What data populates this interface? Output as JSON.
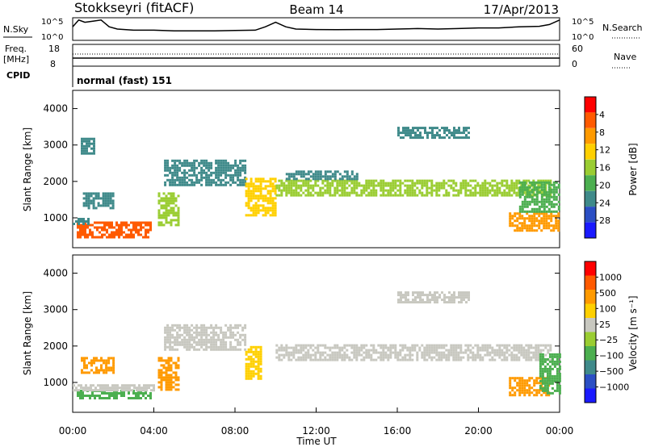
{
  "header": {
    "station": "Stokkseyri (fitACF)",
    "beam": "Beam 14",
    "date": "17/Apr/2013"
  },
  "labels": {
    "nsky": "N.Sky",
    "nsearch": "N.Search",
    "freq": "Freq.",
    "freq_unit": "[MHz]",
    "cpid": "CPID",
    "nave": "Nave",
    "mode": "normal (fast) 151"
  },
  "chart_data": [
    {
      "type": "line",
      "name": "noise-panel",
      "left_ticks": [
        "10^5",
        "10^0"
      ],
      "right_ticks": [
        "10^5",
        "10^0"
      ],
      "x_hours": [
        0,
        0.3,
        0.6,
        1.0,
        1.4,
        1.8,
        2.2,
        3,
        4,
        5,
        6,
        7,
        8,
        9,
        9.5,
        10,
        10.5,
        11,
        12,
        13,
        14,
        15,
        16,
        17,
        18,
        19,
        20,
        21,
        22,
        23,
        23.5,
        24
      ],
      "y": [
        0.6,
        0.9,
        0.8,
        0.85,
        0.9,
        0.6,
        0.5,
        0.45,
        0.45,
        0.42,
        0.42,
        0.42,
        0.44,
        0.45,
        0.6,
        0.8,
        0.6,
        0.5,
        0.48,
        0.47,
        0.48,
        0.48,
        0.5,
        0.52,
        0.5,
        0.52,
        0.55,
        0.55,
        0.6,
        0.62,
        0.7,
        0.9
      ]
    },
    {
      "type": "line",
      "name": "frequency-panel",
      "left_ticks": [
        "18",
        "8"
      ],
      "right_ticks": [
        "60",
        "0"
      ]
    },
    {
      "type": "heatmap",
      "name": "power-panel",
      "xlabel": "",
      "ylabel": "Slant Range [km]",
      "xlim": [
        0,
        24
      ],
      "ylim": [
        180,
        4500
      ],
      "y_ticks": [
        1000,
        2000,
        3000,
        4000
      ],
      "colorbar_label": "Power [dB]",
      "colorbar_ticks": [
        "4",
        "8",
        "12",
        "16",
        "20",
        "24",
        "28"
      ],
      "colorbar_colors": [
        "#1a1aff",
        "#2b4fc4",
        "#3f8a8a",
        "#4caf50",
        "#9acd32",
        "#ffd000",
        "#ff9a00",
        "#ff5a00",
        "#ff0000"
      ],
      "bands": [
        {
          "x": [
            0.2,
            3.8
          ],
          "y": [
            500,
            900
          ],
          "level": 0.85
        },
        {
          "x": [
            0.0,
            0.8
          ],
          "y": [
            850,
            1000
          ],
          "level": 0.3
        },
        {
          "x": [
            0.5,
            2.0
          ],
          "y": [
            1300,
            1700
          ],
          "level": 0.3
        },
        {
          "x": [
            4.2,
            5.2
          ],
          "y": [
            800,
            1700
          ],
          "level": 0.45
        },
        {
          "x": [
            0.4,
            1.0
          ],
          "y": [
            2800,
            3200
          ],
          "level": 0.2
        },
        {
          "x": [
            4.5,
            8.5
          ],
          "y": [
            1900,
            2600
          ],
          "level": 0.3
        },
        {
          "x": [
            8.5,
            10.0
          ],
          "y": [
            1100,
            2100
          ],
          "level": 0.6
        },
        {
          "x": [
            10.0,
            23.5
          ],
          "y": [
            1600,
            2050
          ],
          "level": 0.55
        },
        {
          "x": [
            10.5,
            14.0
          ],
          "y": [
            2050,
            2300
          ],
          "level": 0.3
        },
        {
          "x": [
            16.0,
            19.5
          ],
          "y": [
            3200,
            3500
          ],
          "level": 0.2
        },
        {
          "x": [
            21.5,
            24.0
          ],
          "y": [
            650,
            1150
          ],
          "level": 0.8
        },
        {
          "x": [
            22.0,
            24.0
          ],
          "y": [
            1200,
            2000
          ],
          "level": 0.35
        }
      ]
    },
    {
      "type": "heatmap",
      "name": "velocity-panel",
      "xlabel": "Time UT",
      "ylabel": "Slant Range [km]",
      "xlim": [
        0,
        24
      ],
      "ylim": [
        180,
        4500
      ],
      "y_ticks": [
        1000,
        2000,
        3000,
        4000
      ],
      "x_ticks": [
        "00:00",
        "04:00",
        "08:00",
        "12:00",
        "16:00",
        "20:00",
        "00:00"
      ],
      "colorbar_label": "Velocity [m s⁻¹]",
      "colorbar_ticks": [
        "1000",
        "500",
        "100",
        "25",
        "−25",
        "−100",
        "−500",
        "−1000"
      ],
      "colorbar_colors": [
        "#1a1aff",
        "#2b4fc4",
        "#3f8a8a",
        "#4caf50",
        "#9acd32",
        "#c8c8c0",
        "#ffd000",
        "#ff9a00",
        "#ff5a00",
        "#ff0000"
      ],
      "bands": [
        {
          "x": [
            0.2,
            3.8
          ],
          "y": [
            600,
            800
          ],
          "color": "#4caf50"
        },
        {
          "x": [
            0.0,
            4.0
          ],
          "y": [
            800,
            950
          ],
          "color": "#c8c8c0"
        },
        {
          "x": [
            0.4,
            2.0
          ],
          "y": [
            1300,
            1700
          ],
          "color": "#ff9a00"
        },
        {
          "x": [
            4.2,
            5.2
          ],
          "y": [
            800,
            1700
          ],
          "color": "#ff9a00"
        },
        {
          "x": [
            4.5,
            8.5
          ],
          "y": [
            1900,
            2600
          ],
          "color": "#c8c8c0"
        },
        {
          "x": [
            8.5,
            9.3
          ],
          "y": [
            1100,
            2000
          ],
          "color": "#ffd000"
        },
        {
          "x": [
            10.0,
            23.5
          ],
          "y": [
            1600,
            2050
          ],
          "color": "#c8c8c0"
        },
        {
          "x": [
            16.0,
            19.5
          ],
          "y": [
            3200,
            3500
          ],
          "color": "#c8c8c0"
        },
        {
          "x": [
            21.5,
            23.5
          ],
          "y": [
            650,
            1150
          ],
          "color": "#ff9a00"
        },
        {
          "x": [
            23.0,
            24.0
          ],
          "y": [
            700,
            1800
          ],
          "color": "#4caf50"
        }
      ]
    }
  ]
}
